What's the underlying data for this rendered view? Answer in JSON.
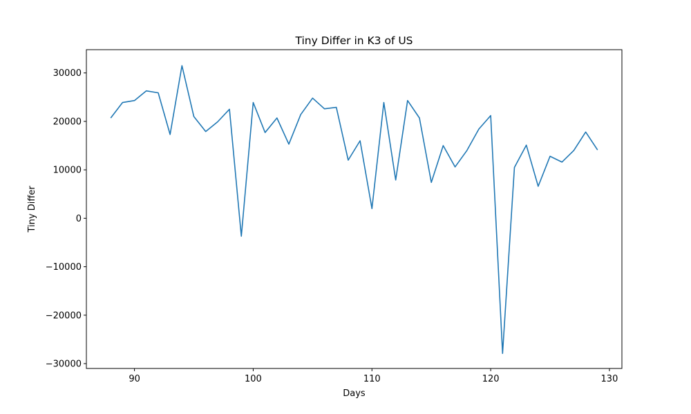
{
  "chart_data": {
    "type": "line",
    "title": "Tiny Differ in K3 of US",
    "xlabel": "Days",
    "ylabel": "Tiny Differ",
    "xlim": [
      85.95,
      131.05
    ],
    "ylim": [
      -31000,
      34800
    ],
    "xticks": [
      90,
      100,
      110,
      120,
      130
    ],
    "yticks": [
      -30000,
      -20000,
      -10000,
      0,
      10000,
      20000,
      30000
    ],
    "ytick_labels": [
      "−30000",
      "−20000",
      "−10000",
      "0",
      "10000",
      "20000",
      "30000"
    ],
    "grid": false,
    "series": [
      {
        "color": "#1f77b4",
        "x": [
          88,
          89,
          90,
          91,
          92,
          93,
          94,
          95,
          96,
          97,
          98,
          99,
          100,
          101,
          102,
          103,
          104,
          105,
          106,
          107,
          108,
          109,
          110,
          111,
          112,
          113,
          114,
          115,
          116,
          117,
          118,
          119,
          120,
          121,
          122,
          123,
          124,
          125,
          126,
          127,
          128,
          129
        ],
        "y": [
          20700,
          23900,
          24300,
          26300,
          25900,
          17300,
          31500,
          21000,
          17900,
          19900,
          22500,
          -3700,
          23900,
          17700,
          20700,
          15300,
          21400,
          24800,
          22600,
          22900,
          12000,
          16000,
          2000,
          23900,
          7900,
          24300,
          20700,
          7400,
          15000,
          10600,
          14000,
          18400,
          21200,
          -27900,
          10500,
          15100,
          6600,
          12800,
          11600,
          14000,
          17800,
          14100
        ]
      }
    ]
  }
}
